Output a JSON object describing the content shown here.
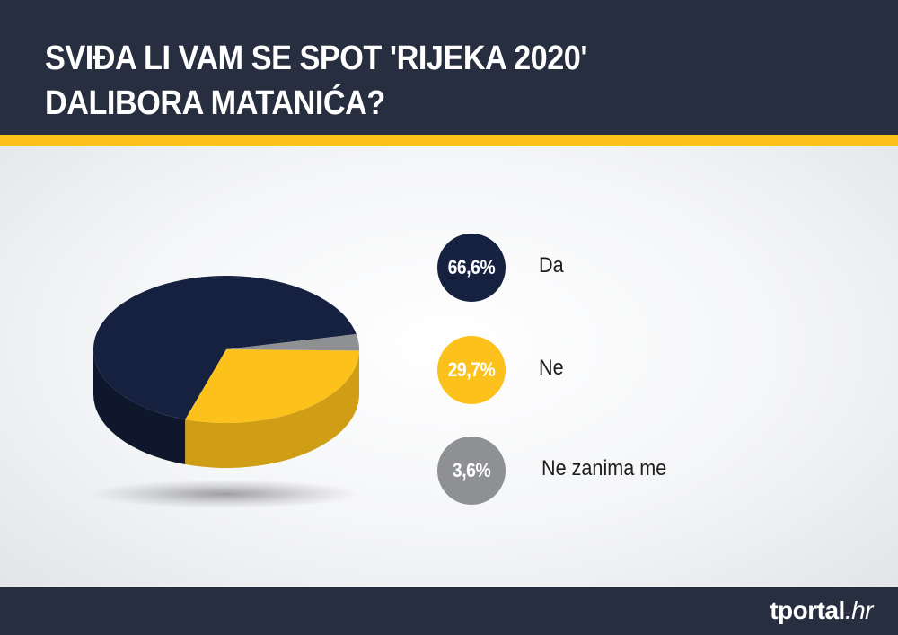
{
  "header": {
    "title_line1": "SVIĐA LI VAM SE SPOT 'RIJEKA 2020'",
    "title_line2": "DALIBORA MATANIĆA?"
  },
  "colors": {
    "header_bg": "#262e40",
    "accent": "#fcc11a",
    "da": "#16213f",
    "ne": "#fcc11a",
    "ne_zanima_me": "#8f9094"
  },
  "chart_data": {
    "type": "pie",
    "style": "3d",
    "slices": [
      {
        "label": "Da",
        "value": 66.6,
        "display": "66,6%",
        "color": "#16213f"
      },
      {
        "label": "Ne",
        "value": 29.7,
        "display": "29,7%",
        "color": "#fcc11a"
      },
      {
        "label": "Ne zanima me",
        "value": 3.6,
        "display": "3,6%",
        "color": "#8f9094"
      }
    ],
    "legend_position": "right"
  },
  "footer": {
    "brand_main": "tportal",
    "brand_suffix": ".hr"
  }
}
